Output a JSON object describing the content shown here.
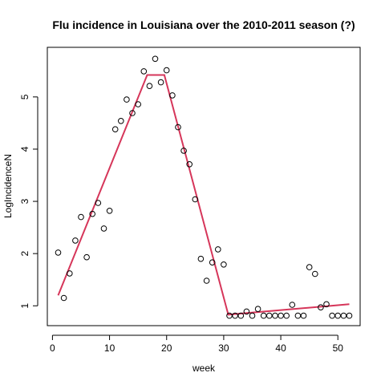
{
  "chart_data": {
    "type": "scatter",
    "title": "Flu incidence in Louisiana over the 2010-2011 season (?)",
    "xlabel": "week",
    "ylabel": "LogIncidenceN",
    "xlim": [
      -0.9,
      53.9
    ],
    "ylim": [
      0.62,
      5.95
    ],
    "xticks": [
      0,
      10,
      20,
      30,
      40,
      50
    ],
    "yticks": [
      1,
      2,
      3,
      4,
      5
    ],
    "grid": false,
    "legend": "none",
    "points": {
      "x": [
        1,
        2,
        3,
        4,
        5,
        6,
        7,
        8,
        9,
        10,
        11,
        12,
        13,
        14,
        15,
        16,
        17,
        18,
        19,
        20,
        21,
        22,
        23,
        24,
        25,
        26,
        27,
        28,
        29,
        30,
        31,
        32,
        33,
        34,
        35,
        36,
        37,
        38,
        39,
        40,
        41,
        42,
        43,
        44,
        45,
        46,
        47,
        48,
        49,
        50,
        51,
        52
      ],
      "y": [
        2.02,
        1.15,
        1.62,
        2.25,
        2.7,
        1.93,
        2.76,
        2.97,
        2.48,
        2.82,
        4.38,
        4.54,
        4.95,
        4.69,
        4.86,
        5.49,
        5.21,
        5.73,
        5.28,
        5.51,
        5.03,
        4.42,
        3.97,
        3.71,
        3.04,
        1.9,
        1.48,
        1.83,
        2.08,
        1.79,
        0.81,
        0.81,
        0.81,
        0.89,
        0.81,
        0.94,
        0.81,
        0.81,
        0.81,
        0.81,
        0.81,
        1.02,
        0.81,
        0.81,
        1.74,
        1.61,
        0.97,
        1.03,
        0.81,
        0.81,
        0.81,
        0.81
      ]
    },
    "series": [
      {
        "type": "line",
        "x": [
          1,
          16.6,
          19.6,
          30.8,
          52
        ],
        "y": [
          1.2,
          5.42,
          5.42,
          0.83,
          1.03
        ]
      }
    ],
    "colors": {
      "points": "#000000",
      "fit_line": "#d6365a"
    }
  }
}
